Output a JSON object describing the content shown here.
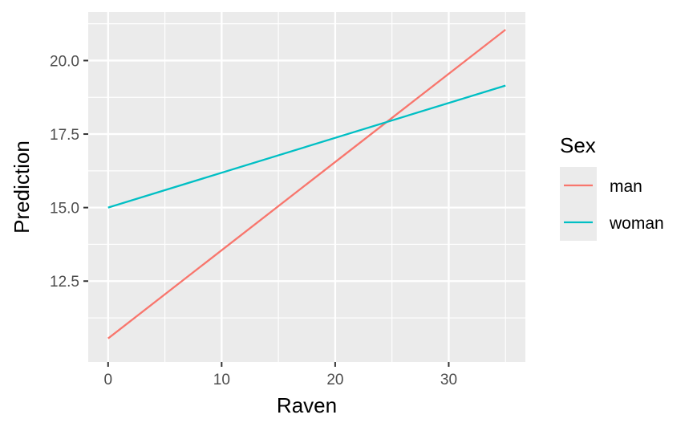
{
  "chart_data": {
    "type": "line",
    "xlabel": "Raven",
    "ylabel": "Prediction",
    "xlim": [
      -1.75,
      36.75
    ],
    "ylim": [
      9.75,
      21.65
    ],
    "x_ticks": [
      0,
      10,
      20,
      30
    ],
    "x_tick_labels": [
      "0",
      "10",
      "20",
      "30"
    ],
    "y_ticks": [
      12.5,
      15.0,
      17.5,
      20.0
    ],
    "y_tick_labels": [
      "12.5",
      "15.0",
      "17.5",
      "20.0"
    ],
    "grid": true,
    "legend": {
      "title": "Sex",
      "position": "right"
    },
    "series": [
      {
        "name": "man",
        "color": "#F8766D",
        "x": [
          0,
          35
        ],
        "y": [
          10.55,
          21.05
        ]
      },
      {
        "name": "woman",
        "color": "#00BFC4",
        "x": [
          0,
          35
        ],
        "y": [
          15.0,
          19.15
        ]
      }
    ]
  }
}
